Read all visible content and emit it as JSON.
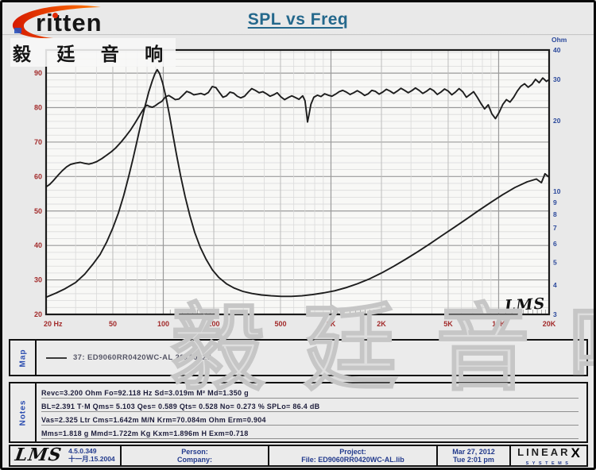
{
  "header": {
    "title": "SPL vs Freq"
  },
  "logo": {
    "brand": "ritten",
    "chinese": "毅 廷 音 响"
  },
  "watermark": "毅 廷 音 响",
  "colors": {
    "title": "#24688c",
    "axis_red": "#a22a2a",
    "axis_blue": "#2c4a9c",
    "curve": "#1d1d1d",
    "grid_major": "#9a9a9a",
    "grid_mid": "#bcbcbc",
    "grid_minor": "#dadada",
    "accent_blue": "#223a8c",
    "watermark": "#c6c6c6"
  },
  "chart_data": {
    "type": "line",
    "title": "SPL vs Freq",
    "x_axis": {
      "scale": "log",
      "min": 20,
      "max": 20000,
      "unit": "Hz",
      "ticks": [
        {
          "f": 20,
          "label": "20 Hz"
        },
        {
          "f": 50,
          "label": "50"
        },
        {
          "f": 100,
          "label": "100"
        },
        {
          "f": 200,
          "label": "200"
        },
        {
          "f": 500,
          "label": "500"
        },
        {
          "f": 1000,
          "label": "1K"
        },
        {
          "f": 2000,
          "label": "2K"
        },
        {
          "f": 5000,
          "label": "5K"
        },
        {
          "f": 10000,
          "label": "10K"
        },
        {
          "f": 20000,
          "label": "20K"
        }
      ]
    },
    "y_left": {
      "scale": "linear",
      "unit": "dB SPL",
      "lim": [
        20,
        96.7
      ],
      "ticks": [
        20,
        30,
        40,
        50,
        60,
        70,
        80,
        90
      ],
      "minor_step": 2
    },
    "y_right": {
      "scale": "log",
      "unit": "Ohm",
      "label": "Ohm",
      "lim": [
        3,
        40
      ],
      "ticks": [
        3,
        4,
        5,
        6,
        7,
        8,
        9,
        10,
        20,
        30,
        40
      ]
    },
    "grid": true,
    "legend_position": "map-strip-below",
    "corner_logo": "LMS",
    "series": [
      {
        "name": "SPL (dB, left axis)",
        "axis": "left",
        "points": [
          [
            20,
            57
          ],
          [
            21,
            57.7
          ],
          [
            22,
            58.7
          ],
          [
            23.5,
            60.3
          ],
          [
            25,
            61.7
          ],
          [
            26.5,
            62.8
          ],
          [
            28,
            63.5
          ],
          [
            30,
            63.9
          ],
          [
            32,
            64.1
          ],
          [
            34,
            63.8
          ],
          [
            36,
            63.6
          ],
          [
            38,
            63.9
          ],
          [
            40,
            64.3
          ],
          [
            43,
            65.2
          ],
          [
            46,
            66.2
          ],
          [
            49,
            67.2
          ],
          [
            52,
            68.3
          ],
          [
            56,
            70.0
          ],
          [
            60,
            71.8
          ],
          [
            64,
            73.6
          ],
          [
            68,
            75.6
          ],
          [
            72,
            77.6
          ],
          [
            75,
            79.0
          ],
          [
            78,
            80.3
          ],
          [
            80,
            80.7
          ],
          [
            83,
            80.3
          ],
          [
            86,
            80.1
          ],
          [
            90,
            80.6
          ],
          [
            94,
            81.3
          ],
          [
            98,
            81.8
          ],
          [
            103,
            83.1
          ],
          [
            108,
            83.5
          ],
          [
            113,
            82.9
          ],
          [
            118,
            82.3
          ],
          [
            124,
            82.5
          ],
          [
            131,
            83.6
          ],
          [
            138,
            84.7
          ],
          [
            145,
            84.3
          ],
          [
            152,
            83.7
          ],
          [
            160,
            83.9
          ],
          [
            168,
            84.1
          ],
          [
            176,
            83.7
          ],
          [
            186,
            84.4
          ],
          [
            196,
            86.1
          ],
          [
            206,
            85.8
          ],
          [
            216,
            84.4
          ],
          [
            227,
            83.0
          ],
          [
            238,
            83.4
          ],
          [
            250,
            84.5
          ],
          [
            263,
            84.2
          ],
          [
            276,
            83.3
          ],
          [
            290,
            82.8
          ],
          [
            305,
            83.3
          ],
          [
            321,
            84.5
          ],
          [
            337,
            85.5
          ],
          [
            354,
            85.0
          ],
          [
            373,
            84.3
          ],
          [
            392,
            84.6
          ],
          [
            412,
            84.0
          ],
          [
            433,
            83.3
          ],
          [
            455,
            83.7
          ],
          [
            478,
            84.3
          ],
          [
            503,
            83.1
          ],
          [
            529,
            82.3
          ],
          [
            556,
            82.9
          ],
          [
            584,
            83.4
          ],
          [
            614,
            82.9
          ],
          [
            645,
            82.4
          ],
          [
            678,
            83.4
          ],
          [
            700,
            82.0
          ],
          [
            715,
            78.5
          ],
          [
            725,
            75.8
          ],
          [
            740,
            78.0
          ],
          [
            760,
            81.0
          ],
          [
            790,
            83.0
          ],
          [
            830,
            83.6
          ],
          [
            872,
            83.2
          ],
          [
            917,
            84.0
          ],
          [
            964,
            83.6
          ],
          [
            1013,
            83.3
          ],
          [
            1065,
            83.9
          ],
          [
            1119,
            84.6
          ],
          [
            1176,
            85.0
          ],
          [
            1236,
            84.5
          ],
          [
            1300,
            83.8
          ],
          [
            1366,
            84.3
          ],
          [
            1436,
            84.9
          ],
          [
            1510,
            84.3
          ],
          [
            1587,
            83.5
          ],
          [
            1668,
            84.0
          ],
          [
            1753,
            85.0
          ],
          [
            1843,
            84.7
          ],
          [
            1937,
            83.9
          ],
          [
            2036,
            84.5
          ],
          [
            2140,
            85.3
          ],
          [
            2250,
            84.8
          ],
          [
            2365,
            84.1
          ],
          [
            2486,
            84.8
          ],
          [
            2613,
            85.6
          ],
          [
            2747,
            85.0
          ],
          [
            2888,
            84.3
          ],
          [
            3036,
            84.9
          ],
          [
            3191,
            85.7
          ],
          [
            3354,
            85.0
          ],
          [
            3526,
            84.1
          ],
          [
            3707,
            84.7
          ],
          [
            3897,
            85.5
          ],
          [
            4096,
            84.9
          ],
          [
            4306,
            83.8
          ],
          [
            4526,
            84.5
          ],
          [
            4758,
            85.4
          ],
          [
            5002,
            84.8
          ],
          [
            5258,
            83.7
          ],
          [
            5527,
            84.5
          ],
          [
            5810,
            85.5
          ],
          [
            6108,
            84.6
          ],
          [
            6421,
            83.0
          ],
          [
            6750,
            83.8
          ],
          [
            7096,
            84.6
          ],
          [
            7459,
            83.0
          ],
          [
            7841,
            81.2
          ],
          [
            8243,
            79.6
          ],
          [
            8665,
            80.8
          ],
          [
            9109,
            78.2
          ],
          [
            9576,
            76.8
          ],
          [
            10067,
            78.6
          ],
          [
            10583,
            80.9
          ],
          [
            11125,
            82.3
          ],
          [
            11695,
            81.6
          ],
          [
            12294,
            83.0
          ],
          [
            12924,
            84.8
          ],
          [
            13586,
            86.2
          ],
          [
            14282,
            86.9
          ],
          [
            15014,
            85.9
          ],
          [
            15783,
            86.7
          ],
          [
            16592,
            88.2
          ],
          [
            17442,
            87.2
          ],
          [
            18336,
            88.6
          ],
          [
            19275,
            87.6
          ],
          [
            20000,
            88.1
          ]
        ]
      },
      {
        "name": "Impedance (Ohm, right axis)",
        "axis": "right",
        "points": [
          [
            20,
            3.55
          ],
          [
            23,
            3.7
          ],
          [
            26,
            3.86
          ],
          [
            30,
            4.1
          ],
          [
            34,
            4.45
          ],
          [
            38,
            4.9
          ],
          [
            42,
            5.4
          ],
          [
            46,
            6.1
          ],
          [
            50,
            7.0
          ],
          [
            54,
            8.1
          ],
          [
            58,
            9.6
          ],
          [
            62,
            11.5
          ],
          [
            66,
            13.8
          ],
          [
            70,
            16.6
          ],
          [
            74,
            19.8
          ],
          [
            78,
            23.2
          ],
          [
            82,
            26.6
          ],
          [
            86,
            29.6
          ],
          [
            89,
            31.6
          ],
          [
            92,
            33.0
          ],
          [
            95,
            31.8
          ],
          [
            99,
            29.0
          ],
          [
            104,
            25.0
          ],
          [
            109,
            21.0
          ],
          [
            114,
            17.5
          ],
          [
            120,
            14.3
          ],
          [
            127,
            11.6
          ],
          [
            135,
            9.5
          ],
          [
            144,
            7.9
          ],
          [
            154,
            6.7
          ],
          [
            166,
            5.8
          ],
          [
            180,
            5.15
          ],
          [
            196,
            4.65
          ],
          [
            215,
            4.3
          ],
          [
            238,
            4.05
          ],
          [
            265,
            3.88
          ],
          [
            298,
            3.76
          ],
          [
            338,
            3.68
          ],
          [
            385,
            3.63
          ],
          [
            440,
            3.6
          ],
          [
            505,
            3.58
          ],
          [
            580,
            3.58
          ],
          [
            670,
            3.6
          ],
          [
            775,
            3.64
          ],
          [
            900,
            3.7
          ],
          [
            1050,
            3.78
          ],
          [
            1230,
            3.9
          ],
          [
            1440,
            4.05
          ],
          [
            1700,
            4.25
          ],
          [
            2000,
            4.5
          ],
          [
            2360,
            4.8
          ],
          [
            2790,
            5.15
          ],
          [
            3300,
            5.55
          ],
          [
            3900,
            6.0
          ],
          [
            4600,
            6.5
          ],
          [
            5450,
            7.05
          ],
          [
            6450,
            7.65
          ],
          [
            7600,
            8.3
          ],
          [
            9000,
            9.0
          ],
          [
            10600,
            9.7
          ],
          [
            12500,
            10.4
          ],
          [
            14800,
            11.0
          ],
          [
            16800,
            11.3
          ],
          [
            18000,
            10.9
          ],
          [
            18900,
            11.9
          ],
          [
            20000,
            11.5
          ]
        ]
      }
    ]
  },
  "map": {
    "label": "Map",
    "legend": "37: ED9060RR0420WC-AL 20120327"
  },
  "notes": {
    "label": "Notes",
    "lines": [
      "Revc=3.200 Ohm  Fo=92.118 Hz  Sd=3.019m M²  Md=1.350 g",
      "BL=2.391 T·M  Qms= 5.103  Qes= 0.589  Qts= 0.528  No= 0.273 %  SPLo= 86.4 dB",
      "Vas=2.325 Ltr  Cms=1.642m M/N  Krm=70.084m Ohm  Erm=0.904",
      "Mms=1.818 g  Mmd=1.722m Kg  Kxm=1.896m H  Exm=0.718"
    ]
  },
  "footer": {
    "lms_logo": "LMS",
    "version": "4.5.0.349",
    "version_date": "十一月.15.2004",
    "person_label": "Person:",
    "company_label": "Company:",
    "project_label": "Project:",
    "file_label": "File: ED9060RR0420WC-AL.lib",
    "date": "Mar 27, 2012",
    "time": "Tue  2:01 pm",
    "brand": {
      "linearx_main": "LINEAR",
      "linearx_x": "X",
      "systems": "SYSTEMS"
    }
  }
}
